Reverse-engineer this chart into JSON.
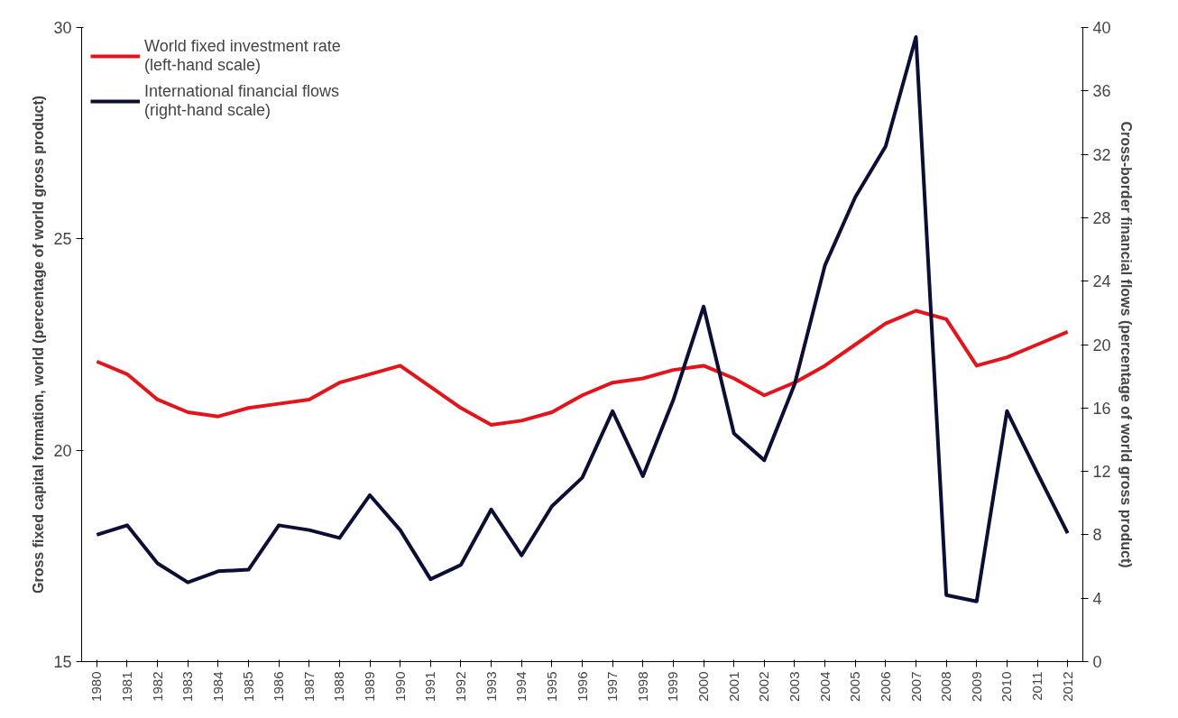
{
  "chart_data": {
    "type": "line",
    "categories": [
      "1980",
      "1981",
      "1982",
      "1983",
      "1984",
      "1985",
      "1986",
      "1987",
      "1988",
      "1989",
      "1990",
      "1991",
      "1992",
      "1993",
      "1994",
      "1995",
      "1996",
      "1997",
      "1998",
      "1999",
      "2000",
      "2001",
      "2002",
      "2003",
      "2004",
      "2005",
      "2006",
      "2007",
      "2008",
      "2009",
      "2010",
      "2011",
      "2012"
    ],
    "ylabel": "Gross fixed capital formation, world (percentage of world gross product)",
    "y2label": "Cross-border financial flows (percentage of world gross product)",
    "ylim": [
      15,
      30
    ],
    "yticks": [
      15,
      20,
      25,
      30
    ],
    "y2lim": [
      0,
      40
    ],
    "y2ticks": [
      0,
      4,
      8,
      12,
      16,
      20,
      24,
      28,
      32,
      36,
      40
    ],
    "grid": false,
    "legend": "top left",
    "line_style": "solid",
    "marker": "none",
    "series": [
      {
        "name": "World fixed investment rate\n(left-hand scale)",
        "color": "#e3151c",
        "values": [
          22.1,
          21.8,
          21.2,
          20.9,
          20.8,
          21.0,
          21.1,
          21.2,
          21.6,
          21.8,
          22.0,
          21.5,
          21.0,
          20.6,
          20.7,
          20.9,
          21.3,
          21.6,
          21.7,
          21.9,
          22.0,
          21.7,
          21.3,
          21.6,
          22.0,
          22.5,
          23.0,
          23.3,
          23.1,
          22.0,
          22.2,
          22.5,
          22.8
        ]
      },
      {
        "name": "International financial flows\n(right-hand scale)",
        "color": "#0a0f33",
        "axis": "y2",
        "values": [
          8.0,
          8.6,
          6.2,
          5.0,
          5.7,
          5.8,
          8.6,
          8.3,
          7.8,
          10.5,
          8.3,
          5.2,
          6.1,
          9.6,
          6.7,
          9.8,
          11.6,
          15.8,
          11.7,
          16.5,
          22.4,
          14.4,
          12.7,
          17.5,
          25.0,
          29.3,
          32.5,
          39.4,
          4.2,
          3.8,
          15.8,
          11.9,
          8.1
        ]
      }
    ]
  }
}
